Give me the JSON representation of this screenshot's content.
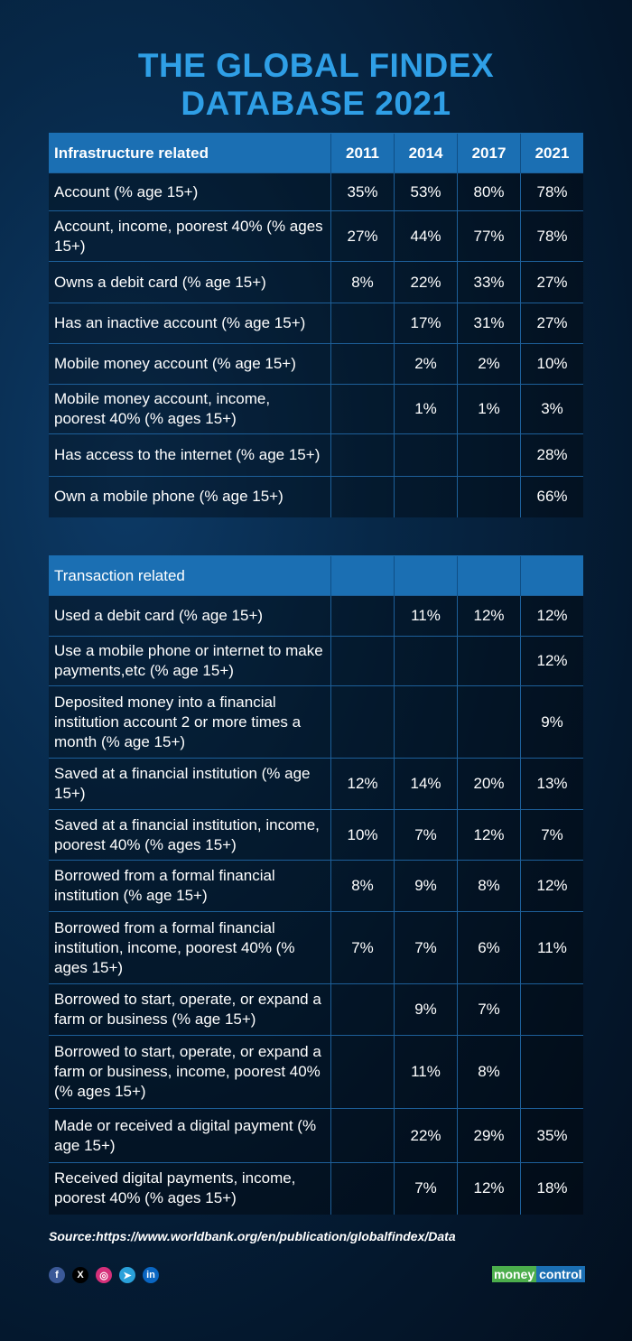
{
  "title": [
    "THE GLOBAL FINDEX",
    "DATABASE 2021"
  ],
  "years": [
    "2011",
    "2014",
    "2017",
    "2021"
  ],
  "infrastructure": {
    "header": "Infrastructure related",
    "rows": [
      {
        "label": "Account (% age 15+)",
        "values": [
          "35%",
          "53%",
          "80%",
          "78%"
        ]
      },
      {
        "label": "Account, income, poorest 40% (% ages 15+)",
        "values": [
          "27%",
          "44%",
          "77%",
          "78%"
        ]
      },
      {
        "label": "Owns a debit card (% age 15+)",
        "values": [
          "8%",
          "22%",
          "33%",
          "27%"
        ]
      },
      {
        "label": "Has an inactive account (% age 15+)",
        "values": [
          "",
          "17%",
          "31%",
          "27%"
        ]
      },
      {
        "label": "Mobile money account (% age 15+)",
        "values": [
          "",
          "2%",
          "2%",
          "10%"
        ]
      },
      {
        "label": "Mobile money account, income, poorest 40% (% ages 15+)",
        "values": [
          "",
          "1%",
          "1%",
          "3%"
        ]
      },
      {
        "label": "Has access to the internet (% age 15+)",
        "values": [
          "",
          "",
          "",
          "28%"
        ]
      },
      {
        "label": "Own a mobile phone (% age 15+)",
        "values": [
          "",
          "",
          "",
          "66%"
        ]
      }
    ]
  },
  "transaction": {
    "header": "Transaction related",
    "rows": [
      {
        "label": "Used a debit card (% age 15+)",
        "values": [
          "",
          "11%",
          "12%",
          "12%"
        ]
      },
      {
        "label": "Use a mobile phone or internet to make payments,etc (% age 15+)",
        "values": [
          "",
          "",
          "",
          "12%"
        ]
      },
      {
        "label": "Deposited money into a financial institution account 2 or more times a month (% age 15+)",
        "values": [
          "",
          "",
          "",
          "9%"
        ]
      },
      {
        "label": "Saved at a financial institution (% age 15+)",
        "values": [
          "12%",
          "14%",
          "20%",
          "13%"
        ]
      },
      {
        "label": "Saved at a financial institution, income, poorest 40% (% ages 15+)",
        "values": [
          "10%",
          "7%",
          "12%",
          "7%"
        ]
      },
      {
        "label": "Borrowed from a formal financial institution (% age 15+)",
        "values": [
          "8%",
          "9%",
          "8%",
          "12%"
        ]
      },
      {
        "label": "Borrowed from a formal financial institution, income, poorest 40% (% ages 15+)",
        "values": [
          "7%",
          "7%",
          "6%",
          "11%"
        ]
      },
      {
        "label": "Borrowed to start, operate, or expand a farm or business (% age 15+)",
        "values": [
          "",
          "9%",
          "7%",
          ""
        ]
      },
      {
        "label": "Borrowed to start, operate, or expand a farm or business, income, poorest 40% (% ages 15+)",
        "values": [
          "",
          "11%",
          "8%",
          ""
        ]
      },
      {
        "label": "Made or received a digital payment (% age 15+)",
        "values": [
          "",
          "22%",
          "29%",
          "35%"
        ]
      },
      {
        "label": "Received digital payments, income, poorest 40% (% ages 15+)",
        "values": [
          "",
          "7%",
          "12%",
          "18%"
        ]
      }
    ]
  },
  "source": "Source:https://www.worldbank.org/en/publication/globalfindex/Data",
  "social": [
    {
      "name": "facebook",
      "glyph": "f",
      "color": "#3b5998"
    },
    {
      "name": "x",
      "glyph": "X",
      "color": "#000000"
    },
    {
      "name": "instagram",
      "glyph": "◎",
      "color": "#d6307a"
    },
    {
      "name": "telegram",
      "glyph": "➤",
      "color": "#2aa1da"
    },
    {
      "name": "linkedin",
      "glyph": "in",
      "color": "#0a66c2"
    }
  ],
  "logo": [
    "money",
    "control"
  ]
}
